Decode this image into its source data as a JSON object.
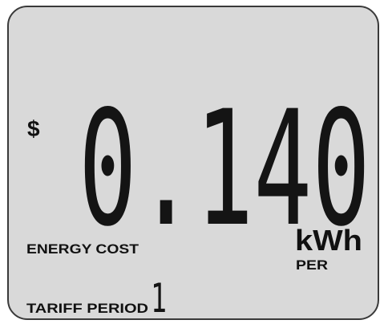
{
  "display": {
    "currency": "$",
    "reading": "0.140",
    "label": "ENERGY COST",
    "unit": "kWh",
    "unit_prefix": "PER",
    "tariff_label": "TARIFF PERIOD",
    "tariff_period": "1"
  }
}
